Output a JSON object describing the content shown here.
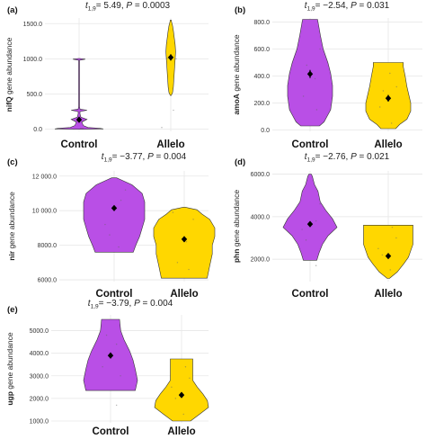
{
  "colors": {
    "control": "#b94fe6",
    "allelo": "#ffd700",
    "grid": "#e6e6e6"
  },
  "chart_data": [
    {
      "type": "violin",
      "panel_label": "(a)",
      "stat": {
        "t": "t",
        "sub": "1,9",
        "rest": "= 5.49, ",
        "p": "P",
        "pval": " = 0.0003"
      },
      "ylabel": "nifQ gene abundance",
      "ylim": [
        -30,
        1580
      ],
      "yticks": [
        0,
        500,
        1000,
        1500
      ],
      "ytick_labels": [
        "0.0",
        "500.0",
        "1000.0",
        "1500.0"
      ],
      "categories": [
        "Control",
        "Allelo"
      ],
      "means": [
        135,
        1020
      ],
      "errors": [
        40,
        45
      ],
      "profiles": [
        [
          [
            0,
            8
          ],
          [
            5,
            55
          ],
          [
            12,
            48
          ],
          [
            25,
            20
          ],
          [
            50,
            10
          ],
          [
            100,
            6
          ],
          [
            140,
            18
          ],
          [
            170,
            4
          ],
          [
            220,
            2
          ],
          [
            250,
            2
          ],
          [
            270,
            18
          ],
          [
            285,
            2
          ],
          [
            320,
            1
          ],
          [
            400,
            1
          ],
          [
            600,
            1
          ],
          [
            800,
            1
          ],
          [
            980,
            1
          ],
          [
            995,
            14
          ],
          [
            1005,
            2
          ]
        ],
        [
          [
            480,
            1
          ],
          [
            520,
            4
          ],
          [
            600,
            6
          ],
          [
            700,
            7
          ],
          [
            800,
            8
          ],
          [
            900,
            9
          ],
          [
            1000,
            10
          ],
          [
            1100,
            11
          ],
          [
            1200,
            10
          ],
          [
            1300,
            8
          ],
          [
            1400,
            6
          ],
          [
            1470,
            4
          ],
          [
            1520,
            2
          ],
          [
            1550,
            1
          ]
        ]
      ],
      "scatter": [
        [
          -6,
          -2
        ],
        [
          4,
          10
        ],
        [
          10,
          5
        ],
        [
          2,
          12
        ],
        [
          -10,
          25
        ],
        [
          6,
          1000
        ],
        [
          -4,
          1006
        ],
        [
          3,
          270
        ]
      ]
    },
    {
      "type": "violin",
      "panel_label": "(b)",
      "stat": {
        "t": "t",
        "sub": "1,9",
        "rest": "= −2.54, ",
        "p": "P",
        "pval": " = 0.031"
      },
      "ylabel": "amoA gene abundance",
      "ylim": [
        -10,
        830
      ],
      "yticks": [
        0,
        200,
        400,
        600,
        800
      ],
      "ytick_labels": [
        "0.0",
        "200.0",
        "400.0",
        "600.0",
        "800.0"
      ],
      "categories": [
        "Control",
        "Allelo"
      ],
      "means": [
        415,
        235
      ],
      "errors": [
        30,
        25
      ],
      "profiles": [
        [
          [
            30,
            10
          ],
          [
            60,
            15
          ],
          [
            150,
            22
          ],
          [
            250,
            24
          ],
          [
            330,
            24
          ],
          [
            420,
            22
          ],
          [
            500,
            19
          ],
          [
            600,
            14
          ],
          [
            700,
            11
          ],
          [
            780,
            9
          ],
          [
            820,
            8
          ]
        ],
        [
          [
            10,
            8
          ],
          [
            40,
            12
          ],
          [
            80,
            20
          ],
          [
            140,
            24
          ],
          [
            200,
            24
          ],
          [
            260,
            22
          ],
          [
            320,
            20
          ],
          [
            400,
            18
          ],
          [
            470,
            16
          ],
          [
            500,
            16
          ]
        ]
      ],
      "scatter": [
        [
          -8,
          250
        ],
        [
          6,
          380
        ],
        [
          12,
          600
        ],
        [
          -4,
          480
        ],
        [
          8,
          150
        ],
        [
          -10,
          170
        ],
        [
          4,
          50
        ],
        [
          10,
          320
        ],
        [
          -6,
          290
        ],
        [
          2,
          420
        ]
      ]
    },
    {
      "type": "violin",
      "panel_label": "(c)",
      "stat": {
        "t": "t",
        "sub": "1,9",
        "rest": "= −3.77, ",
        "p": "P",
        "pval": " = 0.004"
      },
      "ylabel": "nir gene abundance",
      "ylim": [
        5900,
        12300
      ],
      "yticks": [
        6000,
        8000,
        10000,
        12000
      ],
      "ytick_labels": [
        "6000.0",
        "8000.0",
        "10 000.0",
        "12 000.0"
      ],
      "categories": [
        "Control",
        "Allelo"
      ],
      "means": [
        10150,
        8350
      ],
      "errors": [
        150,
        160
      ],
      "profiles": [
        [
          [
            7600,
            15
          ],
          [
            8000,
            17
          ],
          [
            8500,
            20
          ],
          [
            9000,
            22
          ],
          [
            9500,
            24
          ],
          [
            10000,
            24
          ],
          [
            10500,
            24
          ],
          [
            11000,
            22
          ],
          [
            11500,
            14
          ],
          [
            11800,
            5
          ],
          [
            11900,
            2
          ]
        ],
        [
          [
            6100,
            18
          ],
          [
            6800,
            20
          ],
          [
            7500,
            22
          ],
          [
            8000,
            22
          ],
          [
            8500,
            24
          ],
          [
            9000,
            24
          ],
          [
            9500,
            20
          ],
          [
            9800,
            14
          ],
          [
            10050,
            10
          ],
          [
            10200,
            1
          ]
        ]
      ],
      "scatter": [
        [
          -8,
          9200
        ],
        [
          6,
          10600
        ],
        [
          10,
          11200
        ],
        [
          -4,
          8600
        ],
        [
          4,
          7900
        ],
        [
          -10,
          9900
        ],
        [
          2,
          8200
        ],
        [
          8,
          9500
        ],
        [
          -6,
          7000
        ],
        [
          4,
          6600
        ]
      ]
    },
    {
      "type": "violin",
      "panel_label": "(d)",
      "stat": {
        "t": "t",
        "sub": "1,9",
        "rest": "= −2.76, ",
        "p": "P",
        "pval": " = 0.021"
      },
      "ylabel": "phn gene abundance",
      "ylim": [
        950,
        6150
      ],
      "yticks": [
        2000,
        4000,
        6000
      ],
      "ytick_labels": [
        "2000.0",
        "4000.0",
        "6000.0"
      ],
      "categories": [
        "Control",
        "Allelo"
      ],
      "means": [
        3650,
        2150
      ],
      "errors": [
        120,
        110
      ],
      "profiles": [
        [
          [
            1950,
            6
          ],
          [
            2300,
            8
          ],
          [
            2700,
            11
          ],
          [
            3100,
            16
          ],
          [
            3500,
            24
          ],
          [
            3900,
            20
          ],
          [
            4300,
            14
          ],
          [
            4700,
            9
          ],
          [
            5200,
            7
          ],
          [
            5500,
            4
          ],
          [
            5900,
            2
          ],
          [
            6000,
            1
          ]
        ],
        [
          [
            1100,
            1
          ],
          [
            1400,
            8
          ],
          [
            1800,
            14
          ],
          [
            2100,
            18
          ],
          [
            2400,
            20
          ],
          [
            2700,
            22
          ],
          [
            3000,
            22
          ],
          [
            3300,
            22
          ],
          [
            3600,
            22
          ]
        ]
      ],
      "scatter": [
        [
          -8,
          3400
        ],
        [
          6,
          3800
        ],
        [
          10,
          4600
        ],
        [
          -4,
          2900
        ],
        [
          6,
          1700
        ],
        [
          -10,
          2500
        ],
        [
          2,
          1500
        ],
        [
          8,
          3000
        ],
        [
          -6,
          2200
        ],
        [
          4,
          3500
        ]
      ]
    },
    {
      "type": "violin",
      "panel_label": "(e)",
      "stat": {
        "t": "t",
        "sub": "1,9",
        "rest": "= −3.79, ",
        "p": "P",
        "pval": " = 0.004"
      },
      "ylabel": "ugp gene abundance",
      "ylim": [
        920,
        5700
      ],
      "yticks": [
        1000,
        2000,
        3000,
        4000,
        5000
      ],
      "ytick_labels": [
        "1000.0",
        "2000.0",
        "3000.0",
        "4000.0",
        "5000.0"
      ],
      "categories": [
        "Control",
        "Allelo"
      ],
      "means": [
        3900,
        2150
      ],
      "errors": [
        130,
        110
      ],
      "profiles": [
        [
          [
            2350,
            22
          ],
          [
            2800,
            24
          ],
          [
            3300,
            22
          ],
          [
            3700,
            20
          ],
          [
            4100,
            17
          ],
          [
            4600,
            12
          ],
          [
            5000,
            9
          ],
          [
            5500,
            8
          ]
        ],
        [
          [
            1000,
            8
          ],
          [
            1300,
            16
          ],
          [
            1600,
            24
          ],
          [
            1900,
            23
          ],
          [
            2200,
            19
          ],
          [
            2500,
            14
          ],
          [
            2800,
            10
          ],
          [
            3300,
            10
          ],
          [
            3750,
            10
          ]
        ]
      ],
      "scatter": [
        [
          -8,
          3400
        ],
        [
          6,
          4400
        ],
        [
          10,
          3000
        ],
        [
          -4,
          4800
        ],
        [
          6,
          1700
        ],
        [
          -10,
          2500
        ],
        [
          2,
          1300
        ],
        [
          8,
          2900
        ],
        [
          -6,
          2000
        ],
        [
          4,
          3400
        ]
      ]
    }
  ]
}
